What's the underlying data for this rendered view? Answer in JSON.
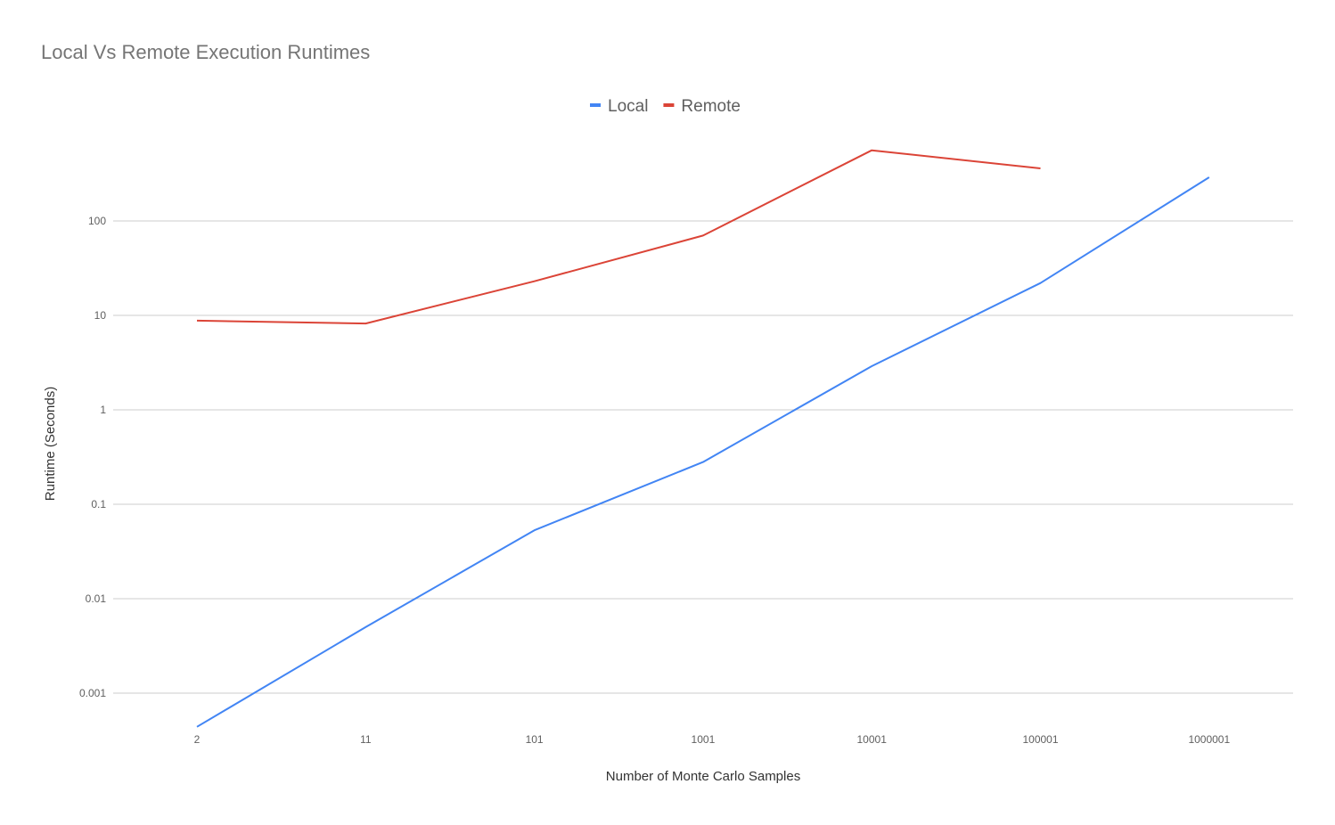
{
  "chart_data": {
    "type": "line",
    "title": "Local Vs Remote Execution Runtimes",
    "xlabel": "Number of Monte Carlo Samples",
    "ylabel": "Runtime (Seconds)",
    "categories": [
      "2",
      "11",
      "101",
      "1001",
      "10001",
      "100001",
      "1000001"
    ],
    "y_scale": "log",
    "ylim": [
      0.00045,
      600
    ],
    "y_ticks": [
      {
        "value": 0.001,
        "label": "0.001"
      },
      {
        "value": 0.01,
        "label": "0.01"
      },
      {
        "value": 0.1,
        "label": "0.1"
      },
      {
        "value": 1,
        "label": "1"
      },
      {
        "value": 10,
        "label": "10"
      },
      {
        "value": 100,
        "label": "100"
      }
    ],
    "grid": true,
    "legend_position": "top",
    "series": [
      {
        "name": "Local",
        "color": "#4285F4",
        "values": [
          0.00044,
          0.005,
          0.053,
          0.28,
          2.9,
          22,
          290
        ]
      },
      {
        "name": "Remote",
        "color": "#DB4437",
        "values": [
          8.8,
          8.2,
          23,
          70,
          560,
          360,
          null
        ]
      }
    ]
  }
}
